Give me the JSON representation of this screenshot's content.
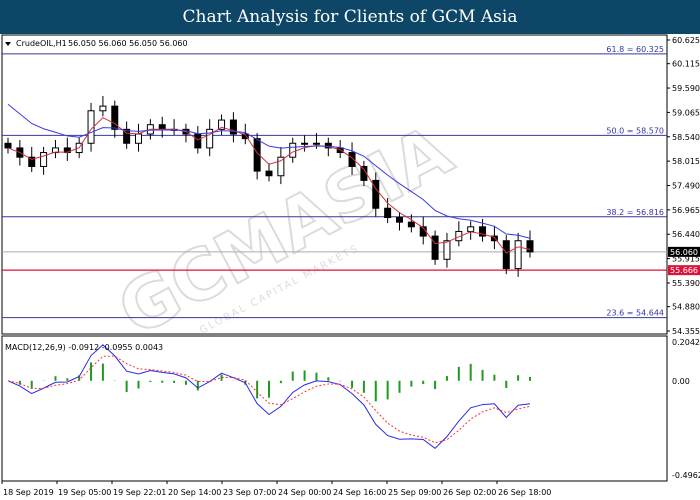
{
  "header": {
    "title": "Chart Analysis for Clients of GCM Asia"
  },
  "watermark": {
    "brand": "GCMASIA",
    "tagline": "GLOBAL CAPITAL MARKETS",
    "symbol": "ai"
  },
  "chart_data": {
    "type": "candlestick",
    "symbol_label": "CrudeOIL,H1",
    "ohlc_label": "56.050 56.060 56.050 56.060",
    "price_axis": {
      "ticks": [
        "60.625",
        "60.115",
        "59.590",
        "59.065",
        "58.540",
        "58.015",
        "57.490",
        "56.965",
        "56.440",
        "55.915",
        "55.390",
        "54.880",
        "54.355"
      ],
      "ylim": [
        54.355,
        60.625
      ]
    },
    "time_axis": {
      "ticks": [
        "18 Sep 2019",
        "19 Sep 05:00",
        "19 Sep 22:01",
        "20 Sep 14:00",
        "23 Sep 07:00",
        "24 Sep 00:00",
        "24 Sep 16:00",
        "25 Sep 09:00",
        "26 Sep 02:00",
        "26 Sep 18:00"
      ]
    },
    "closes": [
      58.3,
      58.1,
      57.9,
      58.2,
      58.3,
      58.2,
      58.4,
      59.1,
      59.2,
      58.7,
      58.4,
      58.6,
      58.8,
      58.7,
      58.7,
      58.6,
      58.3,
      58.7,
      58.9,
      58.6,
      58.5,
      57.8,
      57.7,
      58.1,
      58.4,
      58.4,
      58.4,
      58.3,
      58.2,
      57.9,
      57.6,
      57.0,
      56.8,
      56.7,
      56.6,
      56.4,
      55.9,
      56.3,
      56.5,
      56.6,
      56.4,
      56.3,
      55.7,
      56.3,
      56.06
    ],
    "moving_averages": [
      {
        "color": "#d0303c"
      },
      {
        "color": "#3a3ae0"
      }
    ],
    "fibonacci_levels": [
      {
        "label": "61.8 = 60.325",
        "value": 60.325
      },
      {
        "label": "50.0 = 58.570",
        "value": 58.57
      },
      {
        "label": "38.2 = 56.816",
        "value": 56.816
      },
      {
        "label": "23.6 = 54.644",
        "value": 54.644
      }
    ],
    "current_price": {
      "label": "56.060",
      "value": 56.06
    },
    "support_level": {
      "label": "55.666",
      "value": 55.666,
      "color": "#dc143c"
    },
    "macd": {
      "label": "MACD(12,26,9) -0.0912 -0.0955 0.0043",
      "axis_ticks": [
        "0.2042",
        "0.00",
        "-0.4962"
      ],
      "ylim": [
        -0.4962,
        0.2042
      ],
      "histogram_color": "#1e9a1e",
      "macd_color": "#2a2ae8",
      "signal_color": "#ff3030"
    }
  }
}
